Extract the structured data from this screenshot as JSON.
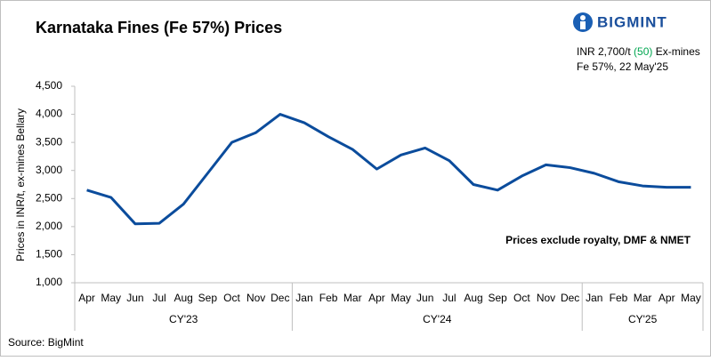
{
  "chart_data": {
    "type": "line",
    "title": "Karnataka Fines (Fe 57%) Prices",
    "brand": "BIGMINT",
    "price_note": {
      "prefix": "INR 2,700/t",
      "change": "(50)",
      "suffix": "Ex-mines",
      "line2": "Fe 57%, 22 May'25"
    },
    "note": "Prices exclude royalty, DMF & NMET",
    "ylabel": "Prices in INR/t, ex-mines Bellary",
    "source": "Source: BigMint",
    "groups": [
      {
        "label": "CY'23",
        "categories": [
          "Apr",
          "May",
          "Jun",
          "Jul",
          "Aug",
          "Sep",
          "Oct",
          "Nov",
          "Dec"
        ]
      },
      {
        "label": "CY'24",
        "categories": [
          "Jan",
          "Feb",
          "Mar",
          "Apr",
          "May",
          "Jun",
          "Jul",
          "Aug",
          "Sep",
          "Oct",
          "Nov",
          "Dec"
        ]
      },
      {
        "label": "CY'25",
        "categories": [
          "Jan",
          "Feb",
          "Mar",
          "Apr",
          "May"
        ]
      }
    ],
    "series": [
      {
        "color": "#0b4c9c",
        "values": [
          2650,
          2520,
          2050,
          2060,
          2400,
          2950,
          3500,
          3675,
          4000,
          3850,
          3600,
          3375,
          3025,
          3275,
          3400,
          3175,
          2750,
          2650,
          2900,
          3100,
          3050,
          2950,
          2800,
          2725,
          2700,
          2700
        ]
      }
    ],
    "ylim": [
      1000,
      4500
    ],
    "yticks": [
      {
        "value": 1000,
        "label": "1,000"
      },
      {
        "value": 1500,
        "label": "1,500"
      },
      {
        "value": 2000,
        "label": "2,000"
      },
      {
        "value": 2500,
        "label": "2,500"
      },
      {
        "value": 3000,
        "label": "3,000"
      },
      {
        "value": 3500,
        "label": "3,500"
      },
      {
        "value": 4000,
        "label": "4,000"
      },
      {
        "value": 4500,
        "label": "4,500"
      }
    ],
    "grid": false
  }
}
